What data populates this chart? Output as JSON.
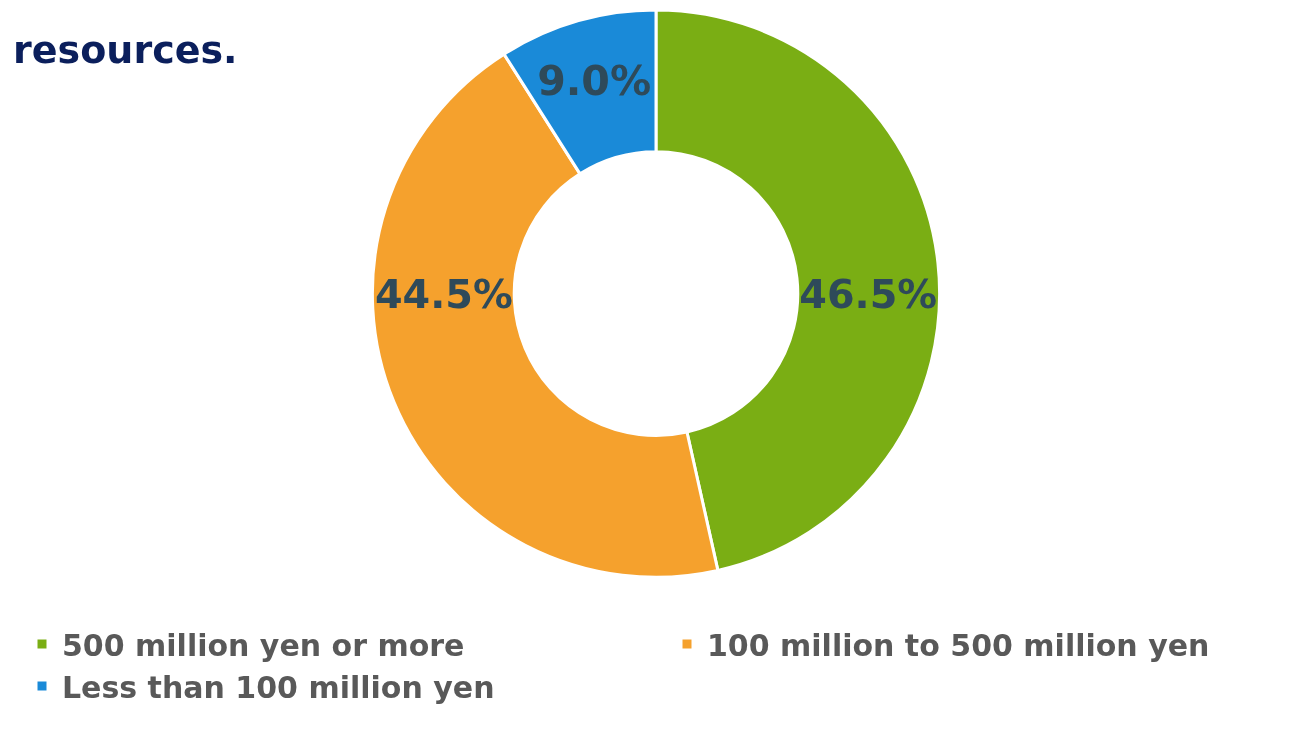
{
  "chart_data": {
    "type": "donut",
    "title": "resources.",
    "categories": [
      "500 million yen or more",
      "100 million to 500 million yen",
      "Less than 100 million yen"
    ],
    "values": [
      46.5,
      44.5,
      9.0
    ],
    "colors": [
      "#7aae14",
      "#f5a12d",
      "#1a8ad8"
    ],
    "value_labels": [
      "46.5%",
      "44.5%",
      "9.0%"
    ],
    "legend": "bottom"
  }
}
